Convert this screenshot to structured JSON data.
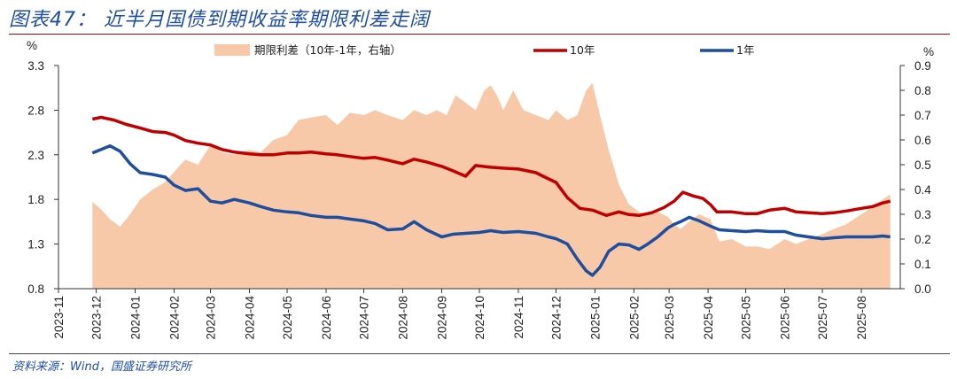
{
  "header": {
    "title": "图表47：  近半月国债到期收益率期限利差走阔"
  },
  "footer": {
    "source": "资料来源：Wind，国盛证券研究所"
  },
  "chart_data": {
    "type": "line",
    "x_labels": [
      "2023-11",
      "2023-12",
      "2024-01",
      "2024-02",
      "2024-03",
      "2024-04",
      "2024-05",
      "2024-06",
      "2024-07",
      "2024-08",
      "2024-09",
      "2024-10",
      "2024-11",
      "2024-12",
      "2025-01",
      "2025-02",
      "2025-03",
      "2025-04",
      "2025-05",
      "2025-06",
      "2025-07",
      "2025-08"
    ],
    "left_unit": "%",
    "right_unit": "%",
    "left_ticks": [
      "0.8",
      "1.3",
      "1.8",
      "2.3",
      "2.8",
      "3.3"
    ],
    "right_ticks": [
      "0.0",
      "0.1",
      "0.2",
      "0.3",
      "0.4",
      "0.5",
      "0.6",
      "0.7",
      "0.8",
      "0.9"
    ],
    "ylim_left": [
      0.8,
      3.3
    ],
    "ylim_right": [
      0.0,
      0.9
    ],
    "grid": false,
    "legend_position": "top",
    "series": [
      {
        "name": "期限利差（10年-1年，右轴）",
        "type": "area",
        "axis": "right",
        "color": "#f7c9a8",
        "points": [
          [
            "2023-11-28",
            0.35
          ],
          [
            "2023-12-05",
            0.32
          ],
          [
            "2023-12-12",
            0.28
          ],
          [
            "2023-12-20",
            0.25
          ],
          [
            "2023-12-28",
            0.3
          ],
          [
            "2024-01-05",
            0.36
          ],
          [
            "2024-01-15",
            0.4
          ],
          [
            "2024-01-25",
            0.43
          ],
          [
            "2024-02-01",
            0.47
          ],
          [
            "2024-02-10",
            0.52
          ],
          [
            "2024-02-20",
            0.5
          ],
          [
            "2024-03-01",
            0.58
          ],
          [
            "2024-03-10",
            0.55
          ],
          [
            "2024-03-20",
            0.54
          ],
          [
            "2024-04-01",
            0.56
          ],
          [
            "2024-04-10",
            0.55
          ],
          [
            "2024-04-20",
            0.6
          ],
          [
            "2024-05-01",
            0.62
          ],
          [
            "2024-05-10",
            0.68
          ],
          [
            "2024-05-20",
            0.69
          ],
          [
            "2024-06-01",
            0.7
          ],
          [
            "2024-06-10",
            0.66
          ],
          [
            "2024-06-20",
            0.71
          ],
          [
            "2024-07-01",
            0.7
          ],
          [
            "2024-07-10",
            0.72
          ],
          [
            "2024-07-20",
            0.7
          ],
          [
            "2024-08-01",
            0.68
          ],
          [
            "2024-08-10",
            0.72
          ],
          [
            "2024-08-20",
            0.7
          ],
          [
            "2024-08-28",
            0.72
          ],
          [
            "2024-09-05",
            0.7
          ],
          [
            "2024-09-12",
            0.78
          ],
          [
            "2024-09-20",
            0.75
          ],
          [
            "2024-09-28",
            0.72
          ],
          [
            "2024-10-05",
            0.8
          ],
          [
            "2024-10-10",
            0.82
          ],
          [
            "2024-10-15",
            0.78
          ],
          [
            "2024-10-20",
            0.72
          ],
          [
            "2024-10-28",
            0.8
          ],
          [
            "2024-11-05",
            0.72
          ],
          [
            "2024-11-15",
            0.7
          ],
          [
            "2024-11-25",
            0.68
          ],
          [
            "2024-12-01",
            0.72
          ],
          [
            "2024-12-10",
            0.68
          ],
          [
            "2024-12-18",
            0.7
          ],
          [
            "2024-12-25",
            0.8
          ],
          [
            "2024-12-30",
            0.83
          ],
          [
            "2025-01-05",
            0.7
          ],
          [
            "2025-01-12",
            0.56
          ],
          [
            "2025-01-20",
            0.42
          ],
          [
            "2025-01-28",
            0.34
          ],
          [
            "2025-02-05",
            0.31
          ],
          [
            "2025-02-12",
            0.3
          ],
          [
            "2025-02-20",
            0.31
          ],
          [
            "2025-02-28",
            0.29
          ],
          [
            "2025-03-05",
            0.26
          ],
          [
            "2025-03-10",
            0.24
          ],
          [
            "2025-03-17",
            0.27
          ],
          [
            "2025-03-25",
            0.3
          ],
          [
            "2025-04-03",
            0.28
          ],
          [
            "2025-04-10",
            0.19
          ],
          [
            "2025-04-20",
            0.2
          ],
          [
            "2025-05-01",
            0.17
          ],
          [
            "2025-05-10",
            0.17
          ],
          [
            "2025-05-20",
            0.16
          ],
          [
            "2025-06-01",
            0.2
          ],
          [
            "2025-06-10",
            0.18
          ],
          [
            "2025-06-20",
            0.2
          ],
          [
            "2025-07-01",
            0.22
          ],
          [
            "2025-07-10",
            0.24
          ],
          [
            "2025-07-20",
            0.26
          ],
          [
            "2025-08-01",
            0.3
          ],
          [
            "2025-08-10",
            0.33
          ],
          [
            "2025-08-18",
            0.36
          ],
          [
            "2025-08-24",
            0.38
          ]
        ]
      },
      {
        "name": "10年",
        "type": "line",
        "axis": "left",
        "color": "#c00000",
        "points": [
          [
            "2023-11-28",
            2.7
          ],
          [
            "2023-12-05",
            2.72
          ],
          [
            "2023-12-15",
            2.69
          ],
          [
            "2023-12-25",
            2.64
          ],
          [
            "2024-01-05",
            2.6
          ],
          [
            "2024-01-15",
            2.56
          ],
          [
            "2024-01-25",
            2.55
          ],
          [
            "2024-02-01",
            2.52
          ],
          [
            "2024-02-10",
            2.46
          ],
          [
            "2024-02-20",
            2.43
          ],
          [
            "2024-03-01",
            2.41
          ],
          [
            "2024-03-10",
            2.36
          ],
          [
            "2024-03-20",
            2.33
          ],
          [
            "2024-04-01",
            2.31
          ],
          [
            "2024-04-10",
            2.3
          ],
          [
            "2024-04-20",
            2.3
          ],
          [
            "2024-05-01",
            2.32
          ],
          [
            "2024-05-10",
            2.32
          ],
          [
            "2024-05-20",
            2.33
          ],
          [
            "2024-06-01",
            2.31
          ],
          [
            "2024-06-10",
            2.3
          ],
          [
            "2024-06-20",
            2.28
          ],
          [
            "2024-07-01",
            2.26
          ],
          [
            "2024-07-10",
            2.27
          ],
          [
            "2024-07-20",
            2.24
          ],
          [
            "2024-08-01",
            2.2
          ],
          [
            "2024-08-10",
            2.25
          ],
          [
            "2024-08-20",
            2.22
          ],
          [
            "2024-09-01",
            2.17
          ],
          [
            "2024-09-10",
            2.12
          ],
          [
            "2024-09-20",
            2.06
          ],
          [
            "2024-09-28",
            2.18
          ],
          [
            "2024-10-10",
            2.16
          ],
          [
            "2024-10-20",
            2.15
          ],
          [
            "2024-11-01",
            2.14
          ],
          [
            "2024-11-15",
            2.1
          ],
          [
            "2024-11-25",
            2.03
          ],
          [
            "2024-12-01",
            1.99
          ],
          [
            "2024-12-10",
            1.82
          ],
          [
            "2024-12-20",
            1.7
          ],
          [
            "2024-12-30",
            1.68
          ],
          [
            "2025-01-10",
            1.62
          ],
          [
            "2025-01-20",
            1.66
          ],
          [
            "2025-01-28",
            1.63
          ],
          [
            "2025-02-05",
            1.62
          ],
          [
            "2025-02-15",
            1.65
          ],
          [
            "2025-02-25",
            1.71
          ],
          [
            "2025-03-05",
            1.78
          ],
          [
            "2025-03-12",
            1.88
          ],
          [
            "2025-03-20",
            1.84
          ],
          [
            "2025-03-28",
            1.81
          ],
          [
            "2025-04-03",
            1.74
          ],
          [
            "2025-04-08",
            1.66
          ],
          [
            "2025-04-20",
            1.66
          ],
          [
            "2025-05-01",
            1.64
          ],
          [
            "2025-05-10",
            1.64
          ],
          [
            "2025-05-20",
            1.68
          ],
          [
            "2025-06-01",
            1.7
          ],
          [
            "2025-06-10",
            1.66
          ],
          [
            "2025-06-20",
            1.65
          ],
          [
            "2025-07-01",
            1.64
          ],
          [
            "2025-07-10",
            1.65
          ],
          [
            "2025-07-20",
            1.67
          ],
          [
            "2025-08-01",
            1.7
          ],
          [
            "2025-08-10",
            1.72
          ],
          [
            "2025-08-18",
            1.76
          ],
          [
            "2025-08-24",
            1.78
          ]
        ]
      },
      {
        "name": "1年",
        "type": "line",
        "axis": "left",
        "color": "#1f4e9e",
        "points": [
          [
            "2023-11-28",
            2.32
          ],
          [
            "2023-12-05",
            2.36
          ],
          [
            "2023-12-12",
            2.4
          ],
          [
            "2023-12-20",
            2.34
          ],
          [
            "2023-12-28",
            2.2
          ],
          [
            "2024-01-05",
            2.1
          ],
          [
            "2024-01-15",
            2.08
          ],
          [
            "2024-01-25",
            2.05
          ],
          [
            "2024-02-01",
            1.96
          ],
          [
            "2024-02-10",
            1.9
          ],
          [
            "2024-02-20",
            1.92
          ],
          [
            "2024-03-01",
            1.78
          ],
          [
            "2024-03-10",
            1.76
          ],
          [
            "2024-03-20",
            1.8
          ],
          [
            "2024-04-01",
            1.76
          ],
          [
            "2024-04-10",
            1.72
          ],
          [
            "2024-04-20",
            1.68
          ],
          [
            "2024-05-01",
            1.66
          ],
          [
            "2024-05-10",
            1.65
          ],
          [
            "2024-05-20",
            1.62
          ],
          [
            "2024-06-01",
            1.6
          ],
          [
            "2024-06-10",
            1.6
          ],
          [
            "2024-06-20",
            1.58
          ],
          [
            "2024-07-01",
            1.56
          ],
          [
            "2024-07-10",
            1.53
          ],
          [
            "2024-07-20",
            1.46
          ],
          [
            "2024-08-01",
            1.47
          ],
          [
            "2024-08-10",
            1.55
          ],
          [
            "2024-08-20",
            1.46
          ],
          [
            "2024-09-01",
            1.38
          ],
          [
            "2024-09-10",
            1.41
          ],
          [
            "2024-09-20",
            1.42
          ],
          [
            "2024-10-01",
            1.43
          ],
          [
            "2024-10-10",
            1.45
          ],
          [
            "2024-10-20",
            1.43
          ],
          [
            "2024-11-01",
            1.44
          ],
          [
            "2024-11-15",
            1.42
          ],
          [
            "2024-11-25",
            1.38
          ],
          [
            "2024-12-01",
            1.36
          ],
          [
            "2024-12-10",
            1.3
          ],
          [
            "2024-12-18",
            1.13
          ],
          [
            "2024-12-25",
            1.0
          ],
          [
            "2024-12-30",
            0.95
          ],
          [
            "2025-01-05",
            1.04
          ],
          [
            "2025-01-12",
            1.22
          ],
          [
            "2025-01-20",
            1.3
          ],
          [
            "2025-01-28",
            1.29
          ],
          [
            "2025-02-05",
            1.24
          ],
          [
            "2025-02-12",
            1.3
          ],
          [
            "2025-02-20",
            1.38
          ],
          [
            "2025-02-28",
            1.48
          ],
          [
            "2025-03-05",
            1.52
          ],
          [
            "2025-03-10",
            1.55
          ],
          [
            "2025-03-17",
            1.6
          ],
          [
            "2025-03-25",
            1.56
          ],
          [
            "2025-04-03",
            1.5
          ],
          [
            "2025-04-10",
            1.46
          ],
          [
            "2025-04-20",
            1.45
          ],
          [
            "2025-05-01",
            1.44
          ],
          [
            "2025-05-10",
            1.45
          ],
          [
            "2025-05-20",
            1.44
          ],
          [
            "2025-06-01",
            1.44
          ],
          [
            "2025-06-10",
            1.4
          ],
          [
            "2025-06-20",
            1.38
          ],
          [
            "2025-07-01",
            1.36
          ],
          [
            "2025-07-10",
            1.37
          ],
          [
            "2025-07-20",
            1.38
          ],
          [
            "2025-08-01",
            1.38
          ],
          [
            "2025-08-10",
            1.38
          ],
          [
            "2025-08-18",
            1.39
          ],
          [
            "2025-08-24",
            1.38
          ]
        ]
      }
    ]
  }
}
